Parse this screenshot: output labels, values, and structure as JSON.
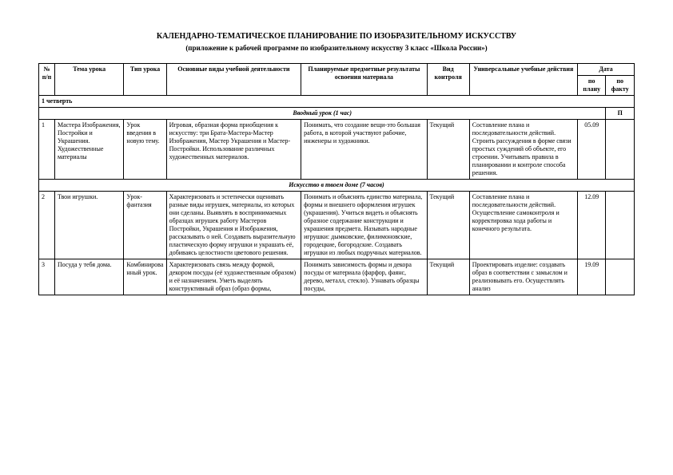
{
  "title": "КАЛЕНДАРНО-ТЕМАТИЧЕСКОЕ ПЛАНИРОВАНИЕ ПО ИЗОБРАЗИТЕЛЬНОМУ ИСКУССТВУ",
  "subtitle": "(приложение к рабочей программе по изобразительному искусству 3 класс «Школа России»)",
  "headers": {
    "num": "№ п/п",
    "topic": "Тема урока",
    "type": "Тип урока",
    "activities": "Основные виды учебной деятельности",
    "results": "Планируемые предметные результаты освоения материала",
    "control": "Вид контроля",
    "uud": "Универсальные учебные действия",
    "date": "Дата",
    "date_plan": "по плану",
    "date_fact": "по факту"
  },
  "sections": {
    "quarter1": "1 четверть",
    "intro": "Вводный урок  (1 час)",
    "intro_col9": "П",
    "art_home": "Искусство в твоем доме (7 часов)"
  },
  "rows": [
    {
      "num": "1",
      "topic": "Мастера Изображения, Постройки и Украшения. Художественные материалы",
      "type": "Урок введения в новую тему.",
      "activities": "Игровая, образная форма приобщения к искусству: три Брата-Мастера-Мастер Изображения, Мастер Украшения и Мастер-Постройки. Использование различных художественных материалов.",
      "results": "Понимать, что создание вещи-это большая работа, в которой участвуют рабочие, инженеры и художники.",
      "control": "Текущий",
      "uud": "Составление плана и последовательности действий. Строить рассуждения в форме связи простых суждений об объекте, его строении. Учитывать правила в планировании и контроле способа решения.",
      "date_plan": "05.09",
      "date_fact": ""
    },
    {
      "num": "2",
      "topic": "Твои игрушки.",
      "type": "Урок-фантазия",
      "activities": "Характеризовать и эстетически оценивать разные виды игрушек, материалы, из которых они сделаны. Выявлять в воспринимаемых образцах игрушек работу Мастеров Постройки, Украшения и Изображения, рассказывать о ней. Создавать выразительную пластическую форму игрушки и украшать её, добиваясь целостности цветового решения.",
      "results": "Понимать и объяснять единство материала, формы и внешнего оформления игрушек (украшения). Учиться видеть и объяснять образное содержание конструкции и украшения предмета. Называть народные игрушки: дымковские, филимоновские, городецкие, богородские. Создавать игрушки из любых подручных материалов.",
      "control": "Текущий",
      "uud": "Составление плана и последовательности действий. Осуществление самоконтроля и корректировка хода работы и конечного результата.",
      "date_plan": "12.09",
      "date_fact": ""
    },
    {
      "num": "3",
      "topic": "Посуда у тебя дома.",
      "type": "Комбинированный урок.",
      "activities": "Характеризовать связь между формой, декором посуды (её художественным образом) и её назначением.  Уметь выделять конструктивный образ (образ формы,",
      "results": "Понимать зависимость формы и декора посуды от материала (фарфор, фаянс, дерево, металл, стекло). Узнавать образцы посуды,",
      "control": "Текущий",
      "uud": "Проектировать изделие: создавать образ в соответствии с замыслом и реализовывать его. Осуществлять анализ",
      "date_plan": "19.09",
      "date_fact": ""
    }
  ]
}
